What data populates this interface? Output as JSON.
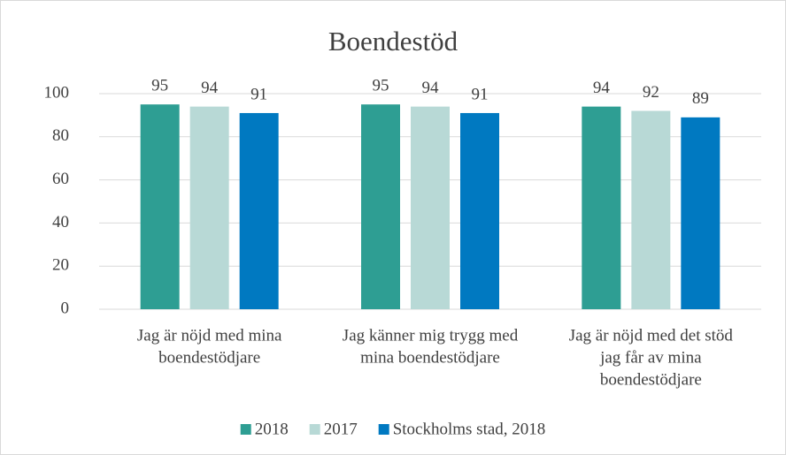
{
  "chart_data": {
    "type": "bar",
    "title": "Boendestöd",
    "categories": [
      [
        "Jag är nöjd med mina",
        "boendestödjare"
      ],
      [
        "Jag känner mig trygg med",
        "mina boendestödjare"
      ],
      [
        "Jag är nöjd med det stöd",
        "jag får av mina",
        "boendestödjare"
      ]
    ],
    "series": [
      {
        "name": "2018",
        "color": "#2e9e93",
        "values": [
          95,
          95,
          94
        ]
      },
      {
        "name": "2017",
        "color": "#b8d9d6",
        "values": [
          94,
          94,
          92
        ]
      },
      {
        "name": "Stockholms stad, 2018",
        "color": "#0079c1",
        "values": [
          91,
          91,
          89
        ]
      }
    ],
    "ylim": [
      0,
      100
    ],
    "yticks": [
      0,
      20,
      40,
      60,
      80,
      100
    ],
    "grid": true,
    "legend": "bottom"
  }
}
